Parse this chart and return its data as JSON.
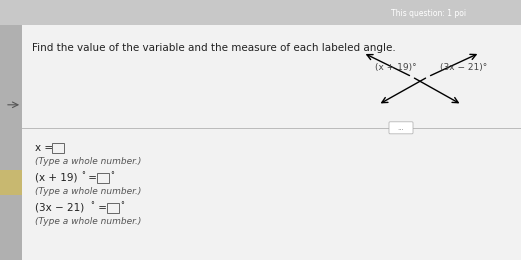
{
  "bg_color": "#c8c8c8",
  "top_bar_color": "#9b1b2a",
  "top_bar_text": "This question: 1 poi",
  "panel_bg": "#f0f0f0",
  "left_bar_color": "#b0b0b0",
  "left_accent_color": "#c8b870",
  "instruction_text": "Find the value of the variable and the measure of each labeled angle.",
  "instruction_fontsize": 7.5,
  "angle1_label": "(x + 19)°",
  "angle2_label": "(3x − 21)°",
  "q1_label": "x = ",
  "q1_sub": "(Type a whole number.)",
  "q2_label": "(x + 19)",
  "q2_deg": "°",
  "q2_eq": " = ",
  "q2_ans_deg": "°",
  "q2_sub": "(Type a whole number.)",
  "q3_label": "(3x − 21)",
  "q3_deg": "°",
  "q3_eq": " = ",
  "q3_ans_deg": "°",
  "q3_sub": "(Type a whole number.)",
  "text_color": "#222222",
  "label_color": "#444444",
  "fontsize_main": 7.5,
  "fontsize_small": 6.5,
  "fontsize_sup": 5.5
}
